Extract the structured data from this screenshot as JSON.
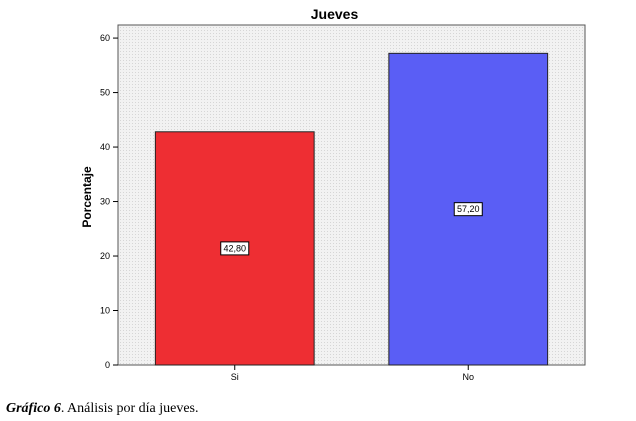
{
  "chart_data": {
    "type": "bar",
    "title": "Jueves",
    "xlabel": "",
    "ylabel": "Porcentaje",
    "categories": [
      "Si",
      "No"
    ],
    "values": [
      42.8,
      57.2
    ],
    "value_labels": [
      "42,80",
      "57,20"
    ],
    "bar_colors": [
      "#ee2e33",
      "#5a5ef5"
    ],
    "ylim": [
      0,
      62.4
    ],
    "yticks": [
      0,
      10,
      20,
      30,
      40,
      50,
      60
    ],
    "grid": false,
    "plot_background": "#f0f0f0"
  },
  "caption": {
    "label": "Gráfico 6",
    "text": ". Análisis por día jueves."
  }
}
